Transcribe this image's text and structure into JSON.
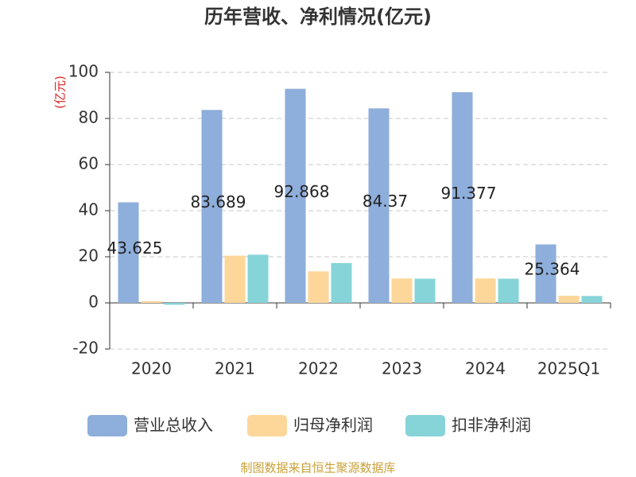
{
  "chart_data": {
    "type": "bar",
    "title": "历年营收、净利情况(亿元)",
    "y_label": "(亿元)",
    "source": "制图数据来自恒生聚源数据库",
    "categories": [
      "2020",
      "2021",
      "2022",
      "2023",
      "2024",
      "2025Q1"
    ],
    "series": [
      {
        "name": "营业总收入",
        "color": "#8eaedb",
        "values": [
          43.625,
          83.689,
          92.868,
          84.37,
          91.377,
          25.364
        ],
        "show_labels": true
      },
      {
        "name": "归母净利润",
        "color": "#fdd79a",
        "values": [
          0.7,
          20.5,
          13.7,
          10.6,
          10.6,
          3.1
        ]
      },
      {
        "name": "扣非净利润",
        "color": "#86d4d8",
        "values": [
          -0.8,
          20.9,
          17.3,
          10.5,
          10.5,
          3.0
        ]
      }
    ],
    "ylim": [
      -20,
      100
    ],
    "yticks": [
      -20,
      0,
      20,
      40,
      60,
      80,
      100
    ],
    "grid": true,
    "legend": "bottom"
  }
}
